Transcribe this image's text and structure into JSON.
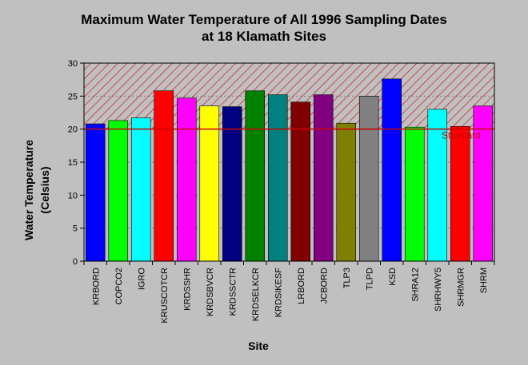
{
  "chart_data": {
    "type": "bar",
    "title_line1": "Maximum Water Temperature of All 1996 Sampling Dates",
    "title_line2": "at 18 Klamath Sites",
    "xlabel": "Site",
    "ylabel_line1": "Water Temperature",
    "ylabel_line2": "(Celsius)",
    "ylim": [
      0,
      30
    ],
    "yticks": [
      "0",
      "5",
      "10",
      "15",
      "20",
      "25",
      "30"
    ],
    "categories": [
      "KRBORD",
      "COPCO2",
      "IGRO",
      "KRUSCOTCR",
      "KRDSSHR",
      "KRDSBVCR",
      "KRDSSCTR",
      "KRDSELKCR",
      "KRDSIKESF",
      "LRBORD",
      "JCBORD",
      "TLP3",
      "TLPD",
      "KSD",
      "SHRA12",
      "SHRHWY5",
      "SHRMGR",
      "SHRM"
    ],
    "values": [
      20.8,
      21.3,
      21.7,
      25.8,
      24.7,
      23.5,
      23.4,
      25.8,
      25.2,
      24.1,
      25.2,
      20.9,
      25.0,
      27.6,
      20.3,
      23.0,
      20.4,
      23.5
    ],
    "colors": [
      "#0000ff",
      "#00ff00",
      "#00ffff",
      "#ff0000",
      "#ff00ff",
      "#ffff00",
      "#000080",
      "#008000",
      "#008080",
      "#800000",
      "#800080",
      "#808000",
      "#808080",
      "#0000ff",
      "#00ff00",
      "#00ffff",
      "#ff0000",
      "#ff00ff"
    ],
    "standard": {
      "label": "Standard",
      "value": 20,
      "upper": 30,
      "color": "#cc0000"
    },
    "grid": true
  }
}
